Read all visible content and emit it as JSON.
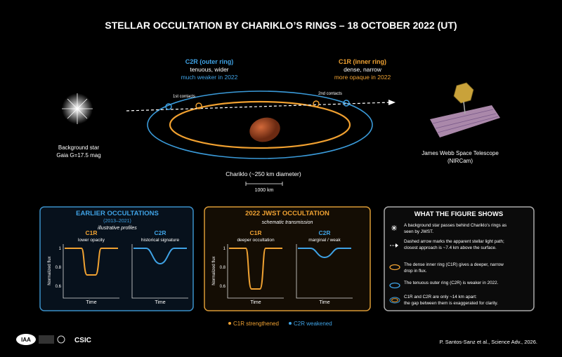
{
  "header": {
    "title": "STELLAR OCCULTATION BY CHARIKLO’S RINGS – 18 OCTOBER 2022 (UT)"
  },
  "scene": {
    "outer_ring": {
      "name": "C2R (outer ring)",
      "desc": "tenuous, wider",
      "note": "much weaker in 2022"
    },
    "inner_ring": {
      "name": "C1R (inner ring)",
      "desc": "dense, narrow",
      "note": "more opaque in 2022"
    },
    "first_contacts": "1st contacts",
    "second_contacts": "2nd contacts",
    "star": [
      "Background star",
      "Gaia G=17.5 mag"
    ],
    "telescope": [
      "James Webb Space Telescope",
      "(NIRCam)"
    ],
    "body": "Chariklo (~250 km diameter)",
    "scale": "1000 km"
  },
  "panels": [
    {
      "title": "EARLIER OCCULTATIONS",
      "subtitle": "(2013–2021)",
      "note": "illustrative profiles",
      "plots": [
        {
          "ring": "C1R",
          "desc": "lower opacity",
          "ylabel": "Normalized flux",
          "yticks": [
            "1",
            "0.8",
            "0.6"
          ],
          "xlabel": "Time"
        },
        {
          "ring": "C2R",
          "desc": "historical signature",
          "xlabel": "Time"
        }
      ]
    },
    {
      "title": "2022 JWST OCCULTATION",
      "note": "schematic transmission",
      "plots": [
        {
          "ring": "C1R",
          "desc": "deeper occultation",
          "ylabel": "Normalized flux",
          "yticks": [
            "1",
            "0.8",
            "0.6"
          ],
          "xlabel": "Time"
        },
        {
          "ring": "C2R",
          "desc": "marginal / weak",
          "xlabel": "Time"
        }
      ]
    }
  ],
  "explanation": {
    "title": "WHAT THE FIGURE SHOWS",
    "items": [
      [
        "A background star passes behind Chariklo’s rings as",
        "seen by JWST."
      ],
      [
        "Dashed arrow marks the apparent stellar light path;",
        "closest approach is ~7.4 km above the surface."
      ],
      [
        "The dense inner ring (C1R) gives a deeper, narrow",
        "drop in flux."
      ],
      [
        "The tenuous outer ring (C2R) is weaker in 2022."
      ],
      [
        "C1R and C2R are only ~14 km apart:",
        "the gap between them is exaggerated for clarity."
      ]
    ]
  },
  "legend": [
    "C1R strengthened",
    "C2R weakened"
  ],
  "footer": {
    "logos": [
      "IAA",
      "CSIC"
    ],
    "credit": "P. Santos-Sanz et al., Science Adv., 2026."
  }
}
